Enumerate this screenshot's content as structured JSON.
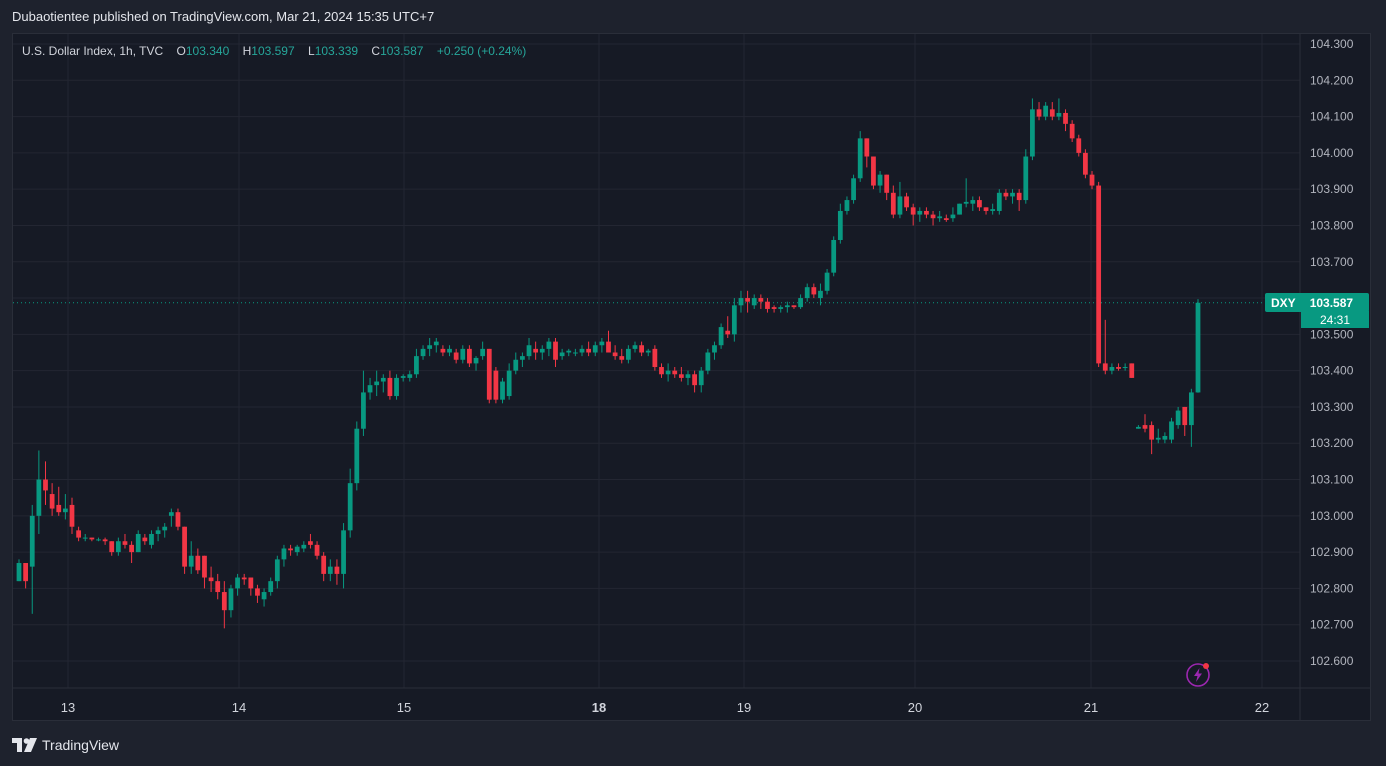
{
  "publisher": "Dubaotientee published on TradingView.com, Mar 21, 2024 15:35 UTC+7",
  "legend": {
    "title": "U.S. Dollar Index, 1h, TVC",
    "o_label": "O",
    "o_val": "103.340",
    "h_label": "H",
    "h_val": "103.597",
    "l_label": "L",
    "l_val": "103.339",
    "c_label": "C",
    "c_val": "103.587",
    "change": "+0.250 (+0.24%)"
  },
  "badge": {
    "symbol": "DXY",
    "price": "103.587",
    "countdown": "24:31"
  },
  "logo_text": "TradingView",
  "colors": {
    "up": "#089981",
    "down": "#f23645",
    "bg": "#161a25",
    "grid": "#232632",
    "text": "#d1d4dc"
  },
  "icons": {
    "logo": "tradingview-logo-icon",
    "alert": "lightning-bolt-icon"
  },
  "chart_data": {
    "type": "candlestick",
    "title": "U.S. Dollar Index, 1h, TVC",
    "ylim": [
      102.55,
      104.32
    ],
    "yticks": [
      "104.300",
      "104.200",
      "104.100",
      "104.000",
      "103.900",
      "103.800",
      "103.700",
      "103.600",
      "103.500",
      "103.400",
      "103.300",
      "103.200",
      "103.100",
      "103.000",
      "102.900",
      "102.800",
      "102.700",
      "102.600"
    ],
    "xticks": [
      "13",
      "14",
      "15",
      "18",
      "19",
      "20",
      "21",
      "22"
    ],
    "last_price": 103.587,
    "grid": true,
    "candles": [
      [
        102.82,
        102.88,
        102.82,
        102.87
      ],
      [
        102.87,
        102.87,
        102.8,
        102.82
      ],
      [
        102.86,
        103.03,
        102.73,
        103.0
      ],
      [
        103.0,
        103.18,
        102.95,
        103.1
      ],
      [
        103.1,
        103.15,
        103.03,
        103.07
      ],
      [
        103.06,
        103.09,
        103.0,
        103.02
      ],
      [
        103.03,
        103.08,
        103.0,
        103.01
      ],
      [
        103.01,
        103.06,
        102.99,
        103.02
      ],
      [
        103.03,
        103.05,
        102.95,
        102.97
      ],
      [
        102.96,
        102.97,
        102.93,
        102.94
      ],
      [
        102.94,
        102.95,
        102.93,
        102.94
      ],
      [
        102.94,
        102.94,
        102.93,
        102.935
      ],
      [
        102.935,
        102.94,
        102.93,
        102.935
      ],
      [
        102.935,
        102.94,
        102.92,
        102.93
      ],
      [
        102.93,
        102.93,
        102.89,
        102.9
      ],
      [
        102.9,
        102.94,
        102.89,
        102.93
      ],
      [
        102.93,
        102.95,
        102.91,
        102.92
      ],
      [
        102.92,
        102.93,
        102.87,
        102.9
      ],
      [
        102.9,
        102.96,
        102.9,
        102.95
      ],
      [
        102.94,
        102.95,
        102.92,
        102.93
      ],
      [
        102.92,
        102.96,
        102.91,
        102.95
      ],
      [
        102.95,
        102.97,
        102.93,
        102.96
      ],
      [
        102.96,
        102.98,
        102.94,
        102.97
      ],
      [
        103.0,
        103.02,
        102.97,
        103.01
      ],
      [
        103.01,
        103.02,
        102.96,
        102.97
      ],
      [
        102.97,
        102.97,
        102.84,
        102.86
      ],
      [
        102.86,
        102.93,
        102.84,
        102.89
      ],
      [
        102.89,
        102.91,
        102.84,
        102.85
      ],
      [
        102.89,
        102.89,
        102.8,
        102.83
      ],
      [
        102.83,
        102.86,
        102.79,
        102.82
      ],
      [
        102.82,
        102.84,
        102.77,
        102.79
      ],
      [
        102.79,
        102.82,
        102.69,
        102.74
      ],
      [
        102.74,
        102.81,
        102.72,
        102.8
      ],
      [
        102.8,
        102.84,
        102.78,
        102.83
      ],
      [
        102.83,
        102.84,
        102.81,
        102.825
      ],
      [
        102.83,
        102.83,
        102.78,
        102.8
      ],
      [
        102.8,
        102.81,
        102.76,
        102.78
      ],
      [
        102.77,
        102.8,
        102.75,
        102.79
      ],
      [
        102.79,
        102.83,
        102.78,
        102.82
      ],
      [
        102.82,
        102.89,
        102.8,
        102.88
      ],
      [
        102.88,
        102.92,
        102.86,
        102.91
      ],
      [
        102.91,
        102.92,
        102.89,
        102.905
      ],
      [
        102.9,
        102.92,
        102.89,
        102.915
      ],
      [
        102.91,
        102.93,
        102.9,
        102.92
      ],
      [
        102.93,
        102.95,
        102.91,
        102.92
      ],
      [
        102.92,
        102.93,
        102.88,
        102.89
      ],
      [
        102.89,
        102.9,
        102.82,
        102.84
      ],
      [
        102.84,
        102.88,
        102.82,
        102.86
      ],
      [
        102.86,
        102.88,
        102.81,
        102.84
      ],
      [
        102.84,
        102.98,
        102.8,
        102.96
      ],
      [
        102.96,
        103.13,
        102.94,
        103.09
      ],
      [
        103.09,
        103.26,
        103.07,
        103.24
      ],
      [
        103.24,
        103.4,
        103.22,
        103.34
      ],
      [
        103.34,
        103.38,
        103.32,
        103.36
      ],
      [
        103.36,
        103.4,
        103.33,
        103.37
      ],
      [
        103.37,
        103.39,
        103.34,
        103.38
      ],
      [
        103.38,
        103.4,
        103.32,
        103.33
      ],
      [
        103.33,
        103.39,
        103.32,
        103.38
      ],
      [
        103.38,
        103.39,
        103.37,
        103.385
      ],
      [
        103.38,
        103.4,
        103.37,
        103.39
      ],
      [
        103.39,
        103.46,
        103.38,
        103.44
      ],
      [
        103.44,
        103.47,
        103.43,
        103.46
      ],
      [
        103.46,
        103.49,
        103.44,
        103.47
      ],
      [
        103.47,
        103.49,
        103.45,
        103.48
      ],
      [
        103.46,
        103.47,
        103.44,
        103.45
      ],
      [
        103.45,
        103.47,
        103.44,
        103.46
      ],
      [
        103.45,
        103.46,
        103.42,
        103.43
      ],
      [
        103.43,
        103.47,
        103.42,
        103.46
      ],
      [
        103.46,
        103.47,
        103.41,
        103.42
      ],
      [
        103.42,
        103.44,
        103.4,
        103.435
      ],
      [
        103.44,
        103.48,
        103.43,
        103.46
      ],
      [
        103.46,
        103.46,
        103.31,
        103.32
      ],
      [
        103.4,
        103.41,
        103.31,
        103.32
      ],
      [
        103.32,
        103.38,
        103.31,
        103.37
      ],
      [
        103.33,
        103.42,
        103.32,
        103.4
      ],
      [
        103.4,
        103.45,
        103.39,
        103.43
      ],
      [
        103.43,
        103.45,
        103.41,
        103.44
      ],
      [
        103.44,
        103.49,
        103.43,
        103.47
      ],
      [
        103.46,
        103.48,
        103.43,
        103.45
      ],
      [
        103.45,
        103.47,
        103.43,
        103.46
      ],
      [
        103.46,
        103.49,
        103.44,
        103.48
      ],
      [
        103.48,
        103.49,
        103.41,
        103.43
      ],
      [
        103.44,
        103.46,
        103.43,
        103.45
      ],
      [
        103.45,
        103.46,
        103.44,
        103.455
      ],
      [
        103.45,
        103.46,
        103.44,
        103.45
      ],
      [
        103.45,
        103.47,
        103.44,
        103.46
      ],
      [
        103.46,
        103.48,
        103.44,
        103.45
      ],
      [
        103.45,
        103.48,
        103.44,
        103.47
      ],
      [
        103.47,
        103.49,
        103.45,
        103.48
      ],
      [
        103.48,
        103.51,
        103.45,
        103.45
      ],
      [
        103.45,
        103.47,
        103.43,
        103.44
      ],
      [
        103.44,
        103.46,
        103.42,
        103.43
      ],
      [
        103.43,
        103.47,
        103.42,
        103.46
      ],
      [
        103.46,
        103.48,
        103.45,
        103.47
      ],
      [
        103.47,
        103.48,
        103.44,
        103.45
      ],
      [
        103.45,
        103.46,
        103.44,
        103.455
      ],
      [
        103.46,
        103.47,
        103.4,
        103.41
      ],
      [
        103.41,
        103.42,
        103.38,
        103.39
      ],
      [
        103.39,
        103.42,
        103.37,
        103.4
      ],
      [
        103.4,
        103.41,
        103.38,
        103.39
      ],
      [
        103.39,
        103.41,
        103.37,
        103.38
      ],
      [
        103.38,
        103.4,
        103.36,
        103.39
      ],
      [
        103.39,
        103.4,
        103.34,
        103.36
      ],
      [
        103.36,
        103.41,
        103.34,
        103.4
      ],
      [
        103.4,
        103.46,
        103.39,
        103.45
      ],
      [
        103.45,
        103.48,
        103.43,
        103.47
      ],
      [
        103.47,
        103.53,
        103.46,
        103.52
      ],
      [
        103.51,
        103.55,
        103.49,
        103.5
      ],
      [
        103.5,
        103.6,
        103.48,
        103.58
      ],
      [
        103.58,
        103.62,
        103.56,
        103.6
      ],
      [
        103.6,
        103.62,
        103.56,
        103.59
      ],
      [
        103.58,
        103.61,
        103.57,
        103.6
      ],
      [
        103.6,
        103.61,
        103.57,
        103.59
      ],
      [
        103.59,
        103.6,
        103.56,
        103.57
      ],
      [
        103.575,
        103.58,
        103.56,
        103.57
      ],
      [
        103.57,
        103.58,
        103.56,
        103.575
      ],
      [
        103.575,
        103.59,
        103.56,
        103.58
      ],
      [
        103.58,
        103.58,
        103.57,
        103.575
      ],
      [
        103.575,
        103.61,
        103.57,
        103.6
      ],
      [
        103.6,
        103.64,
        103.59,
        103.63
      ],
      [
        103.63,
        103.64,
        103.6,
        103.61
      ],
      [
        103.6,
        103.64,
        103.58,
        103.62
      ],
      [
        103.62,
        103.68,
        103.61,
        103.67
      ],
      [
        103.67,
        103.77,
        103.66,
        103.76
      ],
      [
        103.76,
        103.86,
        103.75,
        103.84
      ],
      [
        103.84,
        103.88,
        103.83,
        103.87
      ],
      [
        103.87,
        103.94,
        103.86,
        103.93
      ],
      [
        103.93,
        104.06,
        103.92,
        104.04
      ],
      [
        104.04,
        104.04,
        103.96,
        103.99
      ],
      [
        103.99,
        103.99,
        103.9,
        103.91
      ],
      [
        103.91,
        103.95,
        103.89,
        103.94
      ],
      [
        103.94,
        103.94,
        103.87,
        103.89
      ],
      [
        103.89,
        103.91,
        103.82,
        103.83
      ],
      [
        103.83,
        103.92,
        103.82,
        103.88
      ],
      [
        103.88,
        103.89,
        103.84,
        103.85
      ],
      [
        103.85,
        103.86,
        103.8,
        103.83
      ],
      [
        103.83,
        103.85,
        103.81,
        103.84
      ],
      [
        103.84,
        103.85,
        103.82,
        103.83
      ],
      [
        103.83,
        103.84,
        103.8,
        103.82
      ],
      [
        103.82,
        103.84,
        103.81,
        103.825
      ],
      [
        103.82,
        103.83,
        103.81,
        103.815
      ],
      [
        103.82,
        103.85,
        103.81,
        103.83
      ],
      [
        103.83,
        103.86,
        103.83,
        103.86
      ],
      [
        103.86,
        103.93,
        103.85,
        103.865
      ],
      [
        103.86,
        103.88,
        103.84,
        103.87
      ],
      [
        103.87,
        103.88,
        103.84,
        103.85
      ],
      [
        103.85,
        103.85,
        103.83,
        103.84
      ],
      [
        103.84,
        103.86,
        103.83,
        103.845
      ],
      [
        103.84,
        103.9,
        103.83,
        103.89
      ],
      [
        103.89,
        103.9,
        103.87,
        103.88
      ],
      [
        103.88,
        103.9,
        103.86,
        103.89
      ],
      [
        103.89,
        103.9,
        103.84,
        103.87
      ],
      [
        103.87,
        104.01,
        103.86,
        103.99
      ],
      [
        103.99,
        104.15,
        103.98,
        104.12
      ],
      [
        104.12,
        104.14,
        104.09,
        104.1
      ],
      [
        104.1,
        104.14,
        104.09,
        104.13
      ],
      [
        104.12,
        104.14,
        104.09,
        104.1
      ],
      [
        104.1,
        104.15,
        104.09,
        104.11
      ],
      [
        104.11,
        104.12,
        104.06,
        104.08
      ],
      [
        104.08,
        104.09,
        104.03,
        104.04
      ],
      [
        104.04,
        104.05,
        103.99,
        104.0
      ],
      [
        104.0,
        104.01,
        103.93,
        103.94
      ],
      [
        103.94,
        103.95,
        103.9,
        103.91
      ],
      [
        103.91,
        103.92,
        103.41,
        103.42
      ],
      [
        103.42,
        103.54,
        103.39,
        103.4
      ],
      [
        103.4,
        103.42,
        103.39,
        103.41
      ],
      [
        103.41,
        103.42,
        103.4,
        103.405
      ],
      [
        103.41,
        103.42,
        103.4,
        103.41
      ],
      [
        103.42,
        103.42,
        103.38,
        103.38
      ],
      [
        103.24,
        103.25,
        103.24,
        103.245
      ],
      [
        103.25,
        103.28,
        103.23,
        103.24
      ],
      [
        103.25,
        103.26,
        103.17,
        103.21
      ],
      [
        103.21,
        103.24,
        103.2,
        103.215
      ],
      [
        103.21,
        103.23,
        103.2,
        103.22
      ],
      [
        103.21,
        103.27,
        103.2,
        103.26
      ],
      [
        103.25,
        103.3,
        103.24,
        103.29
      ],
      [
        103.3,
        103.3,
        103.22,
        103.25
      ],
      [
        103.25,
        103.35,
        103.19,
        103.34
      ],
      [
        103.34,
        103.597,
        103.339,
        103.587
      ]
    ]
  }
}
